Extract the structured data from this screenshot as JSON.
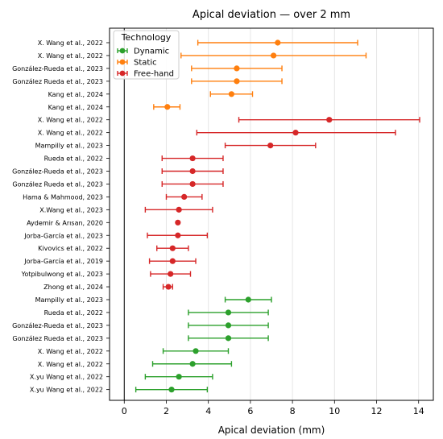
{
  "chart_data": {
    "type": "scatter",
    "title": "Apical deviation — over 2 mm",
    "xlabel": "Apical deviation (mm)",
    "ylabel": "",
    "xlim": [
      -0.7,
      14.7
    ],
    "xticks": [
      0,
      2,
      4,
      6,
      8,
      10,
      12,
      14
    ],
    "grid": "vertical",
    "reference_line_x": 0,
    "legend": {
      "title": "Technology",
      "placement": "top-left",
      "entries": [
        {
          "name": "Dynamic",
          "color": "#2ca02c"
        },
        {
          "name": "Static",
          "color": "#ff7f0e"
        },
        {
          "name": "Free-hand",
          "color": "#d62728"
        }
      ]
    },
    "series": [
      {
        "name": "Static",
        "color": "#ff7f0e",
        "points": [
          {
            "label": "X. Wang et al., 2022",
            "mean": 7.3,
            "low": 3.5,
            "high": 11.1
          },
          {
            "label": "X. Wang et al., 2022",
            "mean": 7.1,
            "low": 2.7,
            "high": 11.5
          },
          {
            "label": "González-Rueda et al., 2023",
            "mean": 5.35,
            "low": 3.2,
            "high": 7.5
          },
          {
            "label": "González Rueda et al., 2023",
            "mean": 5.35,
            "low": 3.2,
            "high": 7.5
          },
          {
            "label": "Kang et al., 2024",
            "mean": 5.1,
            "low": 4.1,
            "high": 6.1
          },
          {
            "label": "Kang et al., 2024",
            "mean": 2.05,
            "low": 1.4,
            "high": 2.65
          }
        ]
      },
      {
        "name": "Free-hand",
        "color": "#d62728",
        "points": [
          {
            "label": "X. Wang et al., 2022",
            "mean": 9.75,
            "low": 5.45,
            "high": 14.05
          },
          {
            "label": "X. Wang et al., 2022",
            "mean": 8.15,
            "low": 3.45,
            "high": 12.9
          },
          {
            "label": "Mampilly et al., 2023",
            "mean": 6.95,
            "low": 4.8,
            "high": 9.1
          },
          {
            "label": "Rueda et al., 2022",
            "mean": 3.25,
            "low": 1.8,
            "high": 4.7
          },
          {
            "label": "González-Rueda et al., 2023",
            "mean": 3.25,
            "low": 1.8,
            "high": 4.7
          },
          {
            "label": "González Rueda et al., 2023",
            "mean": 3.25,
            "low": 1.8,
            "high": 4.7
          },
          {
            "label": "Hama & Mahmood, 2023",
            "mean": 2.85,
            "low": 2.0,
            "high": 3.7
          },
          {
            "label": "X.Wang et al., 2023",
            "mean": 2.6,
            "low": 1.0,
            "high": 4.2
          },
          {
            "label": "Aydemir & Arısan, 2020",
            "mean": 2.55,
            "low": 2.55,
            "high": 2.55
          },
          {
            "label": "Jorba-García et al., 2023",
            "mean": 2.55,
            "low": 1.1,
            "high": 3.95
          },
          {
            "label": "Kivovics et al., 2022",
            "mean": 2.3,
            "low": 1.55,
            "high": 3.05
          },
          {
            "label": "Jorba-García et al., 2019",
            "mean": 2.3,
            "low": 1.2,
            "high": 3.4
          },
          {
            "label": "Yotpibulwong et al., 2023",
            "mean": 2.2,
            "low": 1.25,
            "high": 3.15
          },
          {
            "label": "Zhong et al., 2024",
            "mean": 2.1,
            "low": 1.85,
            "high": 2.3
          }
        ]
      },
      {
        "name": "Dynamic",
        "color": "#2ca02c",
        "points": [
          {
            "label": "Mampilly et al., 2023",
            "mean": 5.9,
            "low": 4.8,
            "high": 7.0
          },
          {
            "label": "Rueda et al., 2022",
            "mean": 4.95,
            "low": 3.05,
            "high": 6.85
          },
          {
            "label": "González-Rueda et al., 2023",
            "mean": 4.95,
            "low": 3.05,
            "high": 6.85
          },
          {
            "label": "González Rueda et al., 2023",
            "mean": 4.95,
            "low": 3.05,
            "high": 6.85
          },
          {
            "label": "X. Wang et al., 2022",
            "mean": 3.4,
            "low": 1.85,
            "high": 4.95
          },
          {
            "label": "X. Wang et al., 2022",
            "mean": 3.25,
            "low": 1.35,
            "high": 5.1
          },
          {
            "label": "X.yu Wang et al., 2022",
            "mean": 2.6,
            "low": 1.0,
            "high": 4.2
          },
          {
            "label": "X.yu Wang et al., 2022",
            "mean": 2.25,
            "low": 0.55,
            "high": 3.95
          }
        ]
      }
    ]
  }
}
